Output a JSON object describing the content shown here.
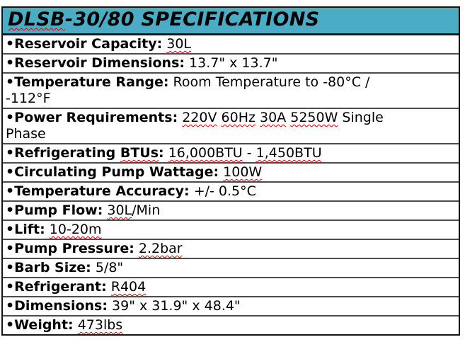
{
  "colors": {
    "header_bg": "#4bacc6",
    "border_dark": "#151515",
    "row_border": "#4d4d4d",
    "squiggle": "#e00000",
    "text": "#000000"
  },
  "bullet": "•",
  "header": {
    "title_segments": [
      {
        "t": "DLSB",
        "sq": true
      },
      {
        "t": "-30/80 SPECIFICATIONS",
        "sq": false
      }
    ]
  },
  "rows": [
    {
      "label_segments": [
        {
          "t": "Reservoir Capacity:",
          "sq": false
        }
      ],
      "value_segments": [
        {
          "t": "30L",
          "sq": true
        }
      ]
    },
    {
      "label_segments": [
        {
          "t": "Reservoir Dimensions:",
          "sq": false
        }
      ],
      "value_segments": [
        {
          "t": "13.7\" x 13.7\"",
          "sq": false
        }
      ]
    },
    {
      "label_segments": [
        {
          "t": "Temperature Range:",
          "sq": false
        }
      ],
      "value_segments": [
        {
          "t": "Room Temperature to -80°C /",
          "sq": false
        },
        {
          "br": true
        },
        {
          "t": "-112°F",
          "sq": false
        }
      ]
    },
    {
      "label_segments": [
        {
          "t": "Power Requirements:",
          "sq": false
        }
      ],
      "value_segments": [
        {
          "t": "220V",
          "sq": true
        },
        {
          "t": " ",
          "sq": false
        },
        {
          "t": "60Hz",
          "sq": true
        },
        {
          "t": " ",
          "sq": false
        },
        {
          "t": "30A",
          "sq": true
        },
        {
          "t": " ",
          "sq": false
        },
        {
          "t": "5250W",
          "sq": true
        },
        {
          "t": " Single",
          "sq": false
        },
        {
          "br": true
        },
        {
          "t": "Phase",
          "sq": false
        }
      ]
    },
    {
      "label_segments": [
        {
          "t": "Refrigerating ",
          "sq": false
        },
        {
          "t": "BTUs",
          "sq": true
        },
        {
          "t": ":",
          "sq": false
        }
      ],
      "value_segments": [
        {
          "t": "16,000BTU",
          "sq": true
        },
        {
          "t": " - ",
          "sq": false
        },
        {
          "t": "1,450BTU",
          "sq": true
        }
      ]
    },
    {
      "label_segments": [
        {
          "t": "Circulating Pump Wattage:",
          "sq": false
        }
      ],
      "value_segments": [
        {
          "t": "100W",
          "sq": true
        }
      ]
    },
    {
      "label_segments": [
        {
          "t": "Temperature Accuracy:",
          "sq": false
        }
      ],
      "value_segments": [
        {
          "t": "+/- 0.5°C",
          "sq": false
        }
      ]
    },
    {
      "label_segments": [
        {
          "t": "Pump Flow:",
          "sq": false
        }
      ],
      "value_segments": [
        {
          "t": "30L",
          "sq": true
        },
        {
          "t": "/Min",
          "sq": false
        }
      ]
    },
    {
      "label_segments": [
        {
          "t": "Lift:",
          "sq": false
        }
      ],
      "value_segments": [
        {
          "t": "10-20m",
          "sq": true
        }
      ]
    },
    {
      "label_segments": [
        {
          "t": "Pump Pressure:",
          "sq": false
        }
      ],
      "value_segments": [
        {
          "t": "2.2bar",
          "sq": true
        }
      ]
    },
    {
      "label_segments": [
        {
          "t": "Barb Size:",
          "sq": false
        }
      ],
      "value_segments": [
        {
          "t": "5/8\"",
          "sq": false
        }
      ]
    },
    {
      "label_segments": [
        {
          "t": "Refrigerant:",
          "sq": false
        }
      ],
      "value_segments": [
        {
          "t": "R404",
          "sq": true
        }
      ]
    },
    {
      "label_segments": [
        {
          "t": "Dimensions:",
          "sq": false
        }
      ],
      "value_segments": [
        {
          "t": "39\" x 31.9\" x 48.4\"",
          "sq": false
        }
      ]
    },
    {
      "label_segments": [
        {
          "t": "Weight:",
          "sq": false
        }
      ],
      "value_segments": [
        {
          "t": "473lbs",
          "sq": true
        }
      ]
    }
  ]
}
